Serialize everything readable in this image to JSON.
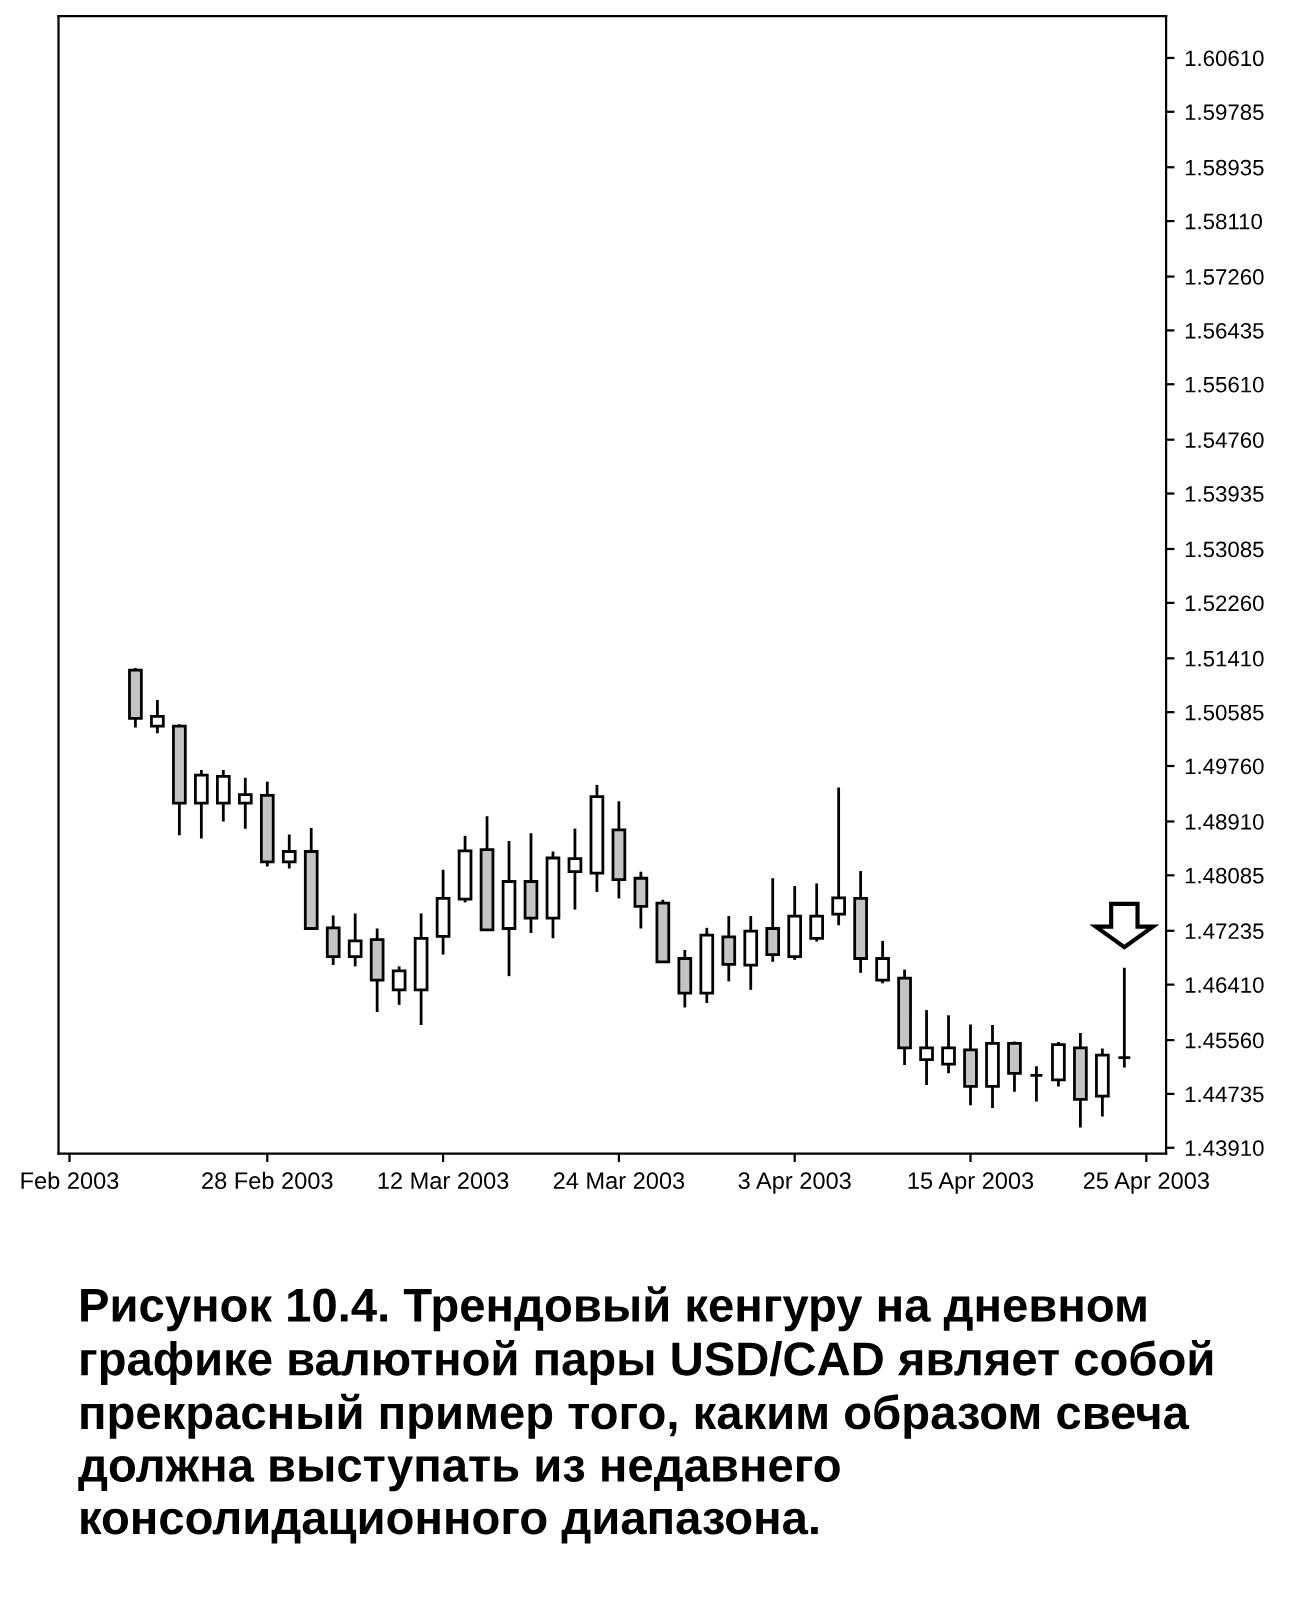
{
  "chart_data": {
    "type": "candlestick",
    "categories": [
      "Feb 2003",
      null,
      null,
      null,
      null,
      null,
      null,
      null,
      null,
      "28 Feb 2003",
      null,
      null,
      null,
      null,
      null,
      null,
      null,
      "12 Mar 2003",
      null,
      null,
      null,
      null,
      null,
      null,
      null,
      "24 Mar 2003",
      null,
      null,
      null,
      null,
      null,
      null,
      null,
      "3 Apr 2003",
      null,
      null,
      null,
      null,
      null,
      null,
      null,
      "15 Apr 2003",
      null,
      null,
      null,
      null,
      null,
      null,
      null,
      "25 Apr 2003"
    ],
    "ohlc": [
      null,
      null,
      null,
      [
        1.5123,
        1.5126,
        1.5035,
        1.5049
      ],
      [
        1.5037,
        1.5077,
        1.5026,
        1.5052
      ],
      [
        1.5037,
        1.504,
        1.487,
        1.4919
      ],
      [
        1.4919,
        1.497,
        1.4865,
        1.4962
      ],
      [
        1.4919,
        1.497,
        1.4891,
        1.496
      ],
      [
        1.4919,
        1.4958,
        1.488,
        1.4932
      ],
      [
        1.4931,
        1.4952,
        1.4822,
        1.4829
      ],
      [
        1.4829,
        1.4871,
        1.4819,
        1.4845
      ],
      [
        1.4845,
        1.4881,
        1.4727,
        1.4727
      ],
      [
        1.4728,
        1.4747,
        1.4671,
        1.4684
      ],
      [
        1.4684,
        1.475,
        1.4669,
        1.4708
      ],
      [
        1.471,
        1.4727,
        1.4599,
        1.4648
      ],
      [
        1.4633,
        1.4669,
        1.461,
        1.4662
      ],
      [
        1.4633,
        1.475,
        1.4579,
        1.4712
      ],
      [
        1.4715,
        1.4817,
        1.4687,
        1.4773
      ],
      [
        1.4772,
        1.4869,
        1.4767,
        1.4846
      ],
      [
        1.4848,
        1.4899,
        1.4725,
        1.4725
      ],
      [
        1.4727,
        1.4861,
        1.4654,
        1.4799
      ],
      [
        1.4799,
        1.4873,
        1.472,
        1.4743
      ],
      [
        1.4743,
        1.4845,
        1.4712,
        1.4835
      ],
      [
        1.4814,
        1.488,
        1.4756,
        1.4834
      ],
      [
        1.4812,
        1.4947,
        1.4783,
        1.4929
      ],
      [
        1.4878,
        1.4922,
        1.4773,
        1.4802
      ],
      [
        1.4804,
        1.4814,
        1.4727,
        1.4761
      ],
      [
        1.4766,
        1.4771,
        1.4676,
        1.4676
      ],
      [
        1.4681,
        1.4694,
        1.4606,
        1.4628
      ],
      [
        1.4628,
        1.4728,
        1.4613,
        1.4717
      ],
      [
        1.4714,
        1.4746,
        1.4646,
        1.4672
      ],
      [
        1.4671,
        1.4746,
        1.4633,
        1.4723
      ],
      [
        1.4727,
        1.4804,
        1.4676,
        1.4687
      ],
      [
        1.4684,
        1.4792,
        1.4679,
        1.4746
      ],
      [
        1.4712,
        1.4796,
        1.4707,
        1.4746
      ],
      [
        1.4749,
        1.4943,
        1.4732,
        1.4774
      ],
      [
        1.4773,
        1.4815,
        1.4659,
        1.4681
      ],
      [
        1.4648,
        1.4708,
        1.4643,
        1.4681
      ],
      [
        1.4651,
        1.4664,
        1.4518,
        1.4544
      ],
      [
        1.4526,
        1.4602,
        1.4487,
        1.4544
      ],
      [
        1.4519,
        1.4594,
        1.4505,
        1.4544
      ],
      [
        1.4541,
        1.458,
        1.4456,
        1.4485
      ],
      [
        1.4485,
        1.4579,
        1.4452,
        1.4551
      ],
      [
        1.4551,
        1.4554,
        1.4477,
        1.4505
      ],
      [
        1.4502,
        1.4516,
        1.4462,
        1.4502
      ],
      [
        1.4495,
        1.4553,
        1.4485,
        1.4549
      ],
      [
        1.4544,
        1.4567,
        1.4422,
        1.4465
      ],
      [
        1.447,
        1.4543,
        1.4439,
        1.4533
      ],
      [
        1.4529,
        1.4667,
        1.4514,
        1.4529
      ],
      null
    ],
    "colors": [
      null,
      null,
      null,
      "#c4c4c4",
      "#ffffff",
      "#c4c4c4",
      "#ffffff",
      "#ffffff",
      "#ffffff",
      "#c4c4c4",
      "#ffffff",
      "#c4c4c4",
      "#c4c4c4",
      "#ffffff",
      "#c4c4c4",
      "#ffffff",
      "#ffffff",
      "#ffffff",
      "#ffffff",
      "#c4c4c4",
      "#ffffff",
      "#c4c4c4",
      "#ffffff",
      "#ffffff",
      "#ffffff",
      "#c4c4c4",
      "#c4c4c4",
      "#c4c4c4",
      "#c4c4c4",
      "#ffffff",
      "#c4c4c4",
      "#ffffff",
      "#c4c4c4",
      "#ffffff",
      "#ffffff",
      "#ffffff",
      "#c4c4c4",
      "#ffffff",
      "#c4c4c4",
      "#ffffff",
      "#ffffff",
      "#c4c4c4",
      "#ffffff",
      "#c4c4c4",
      "#000000",
      "#ffffff",
      "#c4c4c4",
      "#ffffff",
      "#000000",
      null
    ],
    "ylim": [
      1.4382,
      1.6125
    ],
    "yticks": [
      {
        "value": 1.4391,
        "label": "1.43910"
      },
      {
        "value": 1.44735,
        "label": "1.44735"
      },
      {
        "value": 1.4556,
        "label": "1.45560"
      },
      {
        "value": 1.4641,
        "label": "1.46410"
      },
      {
        "value": 1.47235,
        "label": "1.47235"
      },
      {
        "value": 1.48085,
        "label": "1.48085"
      },
      {
        "value": 1.4891,
        "label": "1.48910"
      },
      {
        "value": 1.4976,
        "label": "1.49760"
      },
      {
        "value": 1.50585,
        "label": "1.50585"
      },
      {
        "value": 1.5141,
        "label": "1.51410"
      },
      {
        "value": 1.5226,
        "label": "1.52260"
      },
      {
        "value": 1.53085,
        "label": "1.53085"
      },
      {
        "value": 1.53935,
        "label": "1.53935"
      },
      {
        "value": 1.5476,
        "label": "1.54760"
      },
      {
        "value": 1.5561,
        "label": "1.55610"
      },
      {
        "value": 1.56435,
        "label": "1.56435"
      },
      {
        "value": 1.5726,
        "label": "1.57260"
      },
      {
        "value": 1.5811,
        "label": "1.58110"
      },
      {
        "value": 1.58935,
        "label": "1.58935"
      },
      {
        "value": 1.59785,
        "label": "1.59785"
      },
      {
        "value": 1.6061,
        "label": "1.60610"
      }
    ],
    "grid": false,
    "legend": false,
    "annotations": [
      "Рисунок 10.4. Трендовый кенгуру на дневном графике валютной пары USD/CAD являет собой прекрасный пример того, каким образом свеча должна выступать из недавнего консолидационного диапазона."
    ]
  }
}
